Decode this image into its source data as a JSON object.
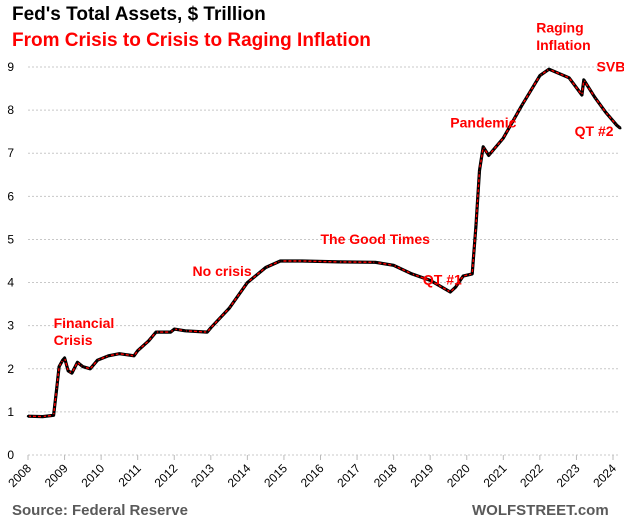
{
  "chart_data": {
    "type": "line",
    "title": "Fed's Total Assets, $ Trillion",
    "subtitle": "From Crisis to Crisis to Raging Inflation",
    "source": "Source: Federal Reserve",
    "watermark": "WOLFSTREET.com",
    "xlabel": "",
    "ylabel": "",
    "xlim": [
      2008,
      2024.2
    ],
    "ylim": [
      0,
      9
    ],
    "grid": "horizontal dotted",
    "x_ticks": [
      "2008",
      "2009",
      "2010",
      "2011",
      "2012",
      "2013",
      "2014",
      "2015",
      "2016",
      "2017",
      "2018",
      "2019",
      "2020",
      "2021",
      "2022",
      "2023",
      "2024"
    ],
    "y_ticks": [
      "0",
      "1",
      "2",
      "3",
      "4",
      "5",
      "6",
      "7",
      "8",
      "9"
    ],
    "line_color": "#ff0000",
    "marker_color": "#000000",
    "x": [
      2008.0,
      2008.4,
      2008.7,
      2008.78,
      2008.85,
      2008.95,
      2009.0,
      2009.1,
      2009.2,
      2009.35,
      2009.5,
      2009.7,
      2009.9,
      2010.2,
      2010.5,
      2010.9,
      2011.0,
      2011.3,
      2011.5,
      2011.9,
      2012.0,
      2012.3,
      2012.9,
      2013.0,
      2013.5,
      2014.0,
      2014.5,
      2014.9,
      2015.5,
      2016.5,
      2017.5,
      2018.0,
      2018.5,
      2019.0,
      2019.55,
      2019.7,
      2019.9,
      2020.15,
      2020.25,
      2020.35,
      2020.45,
      2020.6,
      2021.0,
      2021.5,
      2022.0,
      2022.25,
      2022.8,
      2023.15,
      2023.2,
      2023.5,
      2023.8,
      2024.1,
      2024.2
    ],
    "values": [
      0.9,
      0.89,
      0.92,
      1.5,
      2.05,
      2.2,
      2.25,
      1.95,
      1.9,
      2.15,
      2.05,
      2.0,
      2.2,
      2.3,
      2.35,
      2.3,
      2.42,
      2.65,
      2.85,
      2.85,
      2.92,
      2.88,
      2.85,
      2.95,
      3.4,
      4.0,
      4.35,
      4.5,
      4.5,
      4.48,
      4.47,
      4.4,
      4.2,
      4.05,
      3.78,
      3.9,
      4.15,
      4.2,
      5.3,
      6.6,
      7.15,
      6.95,
      7.35,
      8.1,
      8.8,
      8.95,
      8.75,
      8.35,
      8.7,
      8.3,
      7.95,
      7.65,
      7.58
    ],
    "annotations": [
      {
        "text": "Financial",
        "x": 2008.7,
        "y": 2.95
      },
      {
        "text": "Crisis",
        "x": 2008.7,
        "y": 2.55
      },
      {
        "text": "No crisis",
        "x": 2012.5,
        "y": 4.15
      },
      {
        "text": "The Good Times",
        "x": 2016.0,
        "y": 4.9
      },
      {
        "text": "QT #1",
        "x": 2018.8,
        "y": 3.95
      },
      {
        "text": "Pandemic",
        "x": 2019.55,
        "y": 7.6
      },
      {
        "text": "Raging",
        "x": 2021.9,
        "y": 9.8
      },
      {
        "text": "Inflation",
        "x": 2021.9,
        "y": 9.4
      },
      {
        "text": "SVB",
        "x": 2023.55,
        "y": 8.9
      },
      {
        "text": "QT #2",
        "x": 2022.95,
        "y": 7.4
      }
    ]
  }
}
